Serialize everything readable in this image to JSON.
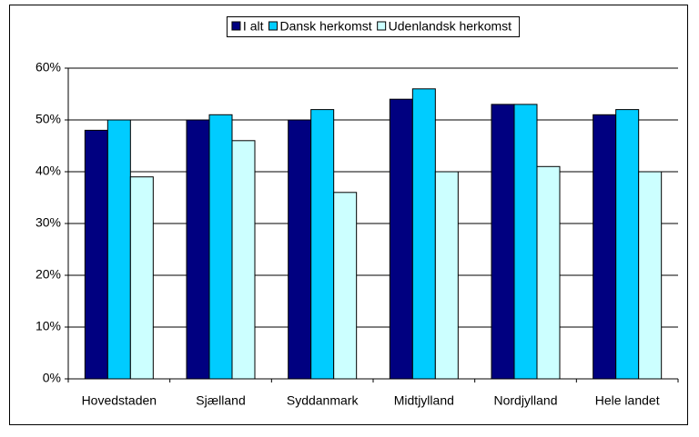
{
  "chart_data": {
    "type": "bar",
    "categories": [
      "Hovedstaden",
      "Sjælland",
      "Syddanmark",
      "Midtjylland",
      "Nordjylland",
      "Hele landet"
    ],
    "series": [
      {
        "name": "I alt",
        "color": "#000080",
        "values": [
          48,
          50,
          50,
          54,
          53,
          51
        ]
      },
      {
        "name": "Dansk herkomst",
        "color": "#00ccff",
        "values": [
          50,
          51,
          52,
          56,
          53,
          52
        ]
      },
      {
        "name": "Udenlandsk herkomst",
        "color": "#ccffff",
        "values": [
          39,
          46,
          36,
          40,
          41,
          40
        ]
      }
    ],
    "ylim": [
      0,
      60
    ],
    "yticks": [
      {
        "value": 0,
        "label": "0%"
      },
      {
        "value": 10,
        "label": "10%"
      },
      {
        "value": 20,
        "label": "20%"
      },
      {
        "value": 30,
        "label": "30%"
      },
      {
        "value": 40,
        "label": "40%"
      },
      {
        "value": 50,
        "label": "50%"
      },
      {
        "value": 60,
        "label": "60%"
      }
    ],
    "grid": true,
    "legend": "top"
  }
}
